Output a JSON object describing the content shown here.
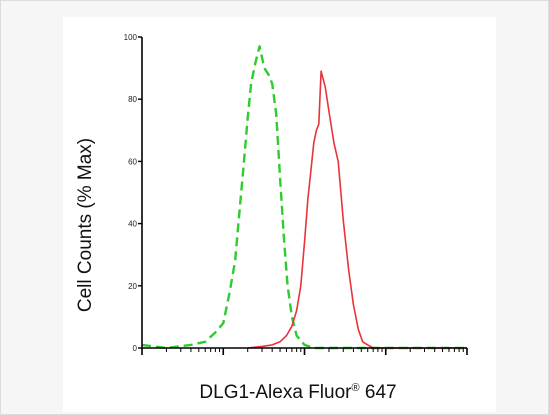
{
  "chart_data": {
    "type": "line",
    "xscale": "log",
    "ylabel": "Cell Counts (% Max)",
    "xlabel": {
      "text": "DLG1-Alexa Fluor",
      "superscript": "®",
      "suffix": " 647"
    },
    "ylim": [
      0,
      100
    ],
    "y_ticks": [
      "0",
      "20",
      "40",
      "60",
      "80",
      "100"
    ],
    "grid": false,
    "legend": "none",
    "series": [
      {
        "style": "dashed",
        "color": "#2ecc2e",
        "x": [
          10,
          20,
          40,
          60,
          80,
          100,
          120,
          140,
          160,
          180,
          200,
          220,
          250,
          280,
          320,
          360,
          400,
          450,
          500,
          560,
          620,
          700,
          800,
          1000,
          1300,
          2000,
          5000,
          100000
        ],
        "y": [
          1,
          0,
          1,
          2,
          5,
          8,
          18,
          28,
          45,
          60,
          74,
          85,
          92,
          97,
          90,
          88,
          85,
          75,
          55,
          35,
          20,
          10,
          4,
          1,
          0,
          0,
          0,
          0
        ]
      },
      {
        "style": "solid",
        "color": "#e8333a",
        "x": [
          200,
          300,
          400,
          500,
          600,
          700,
          800,
          900,
          1000,
          1100,
          1200,
          1300,
          1400,
          1500,
          1600,
          1800,
          2000,
          2300,
          2600,
          3000,
          3500,
          4000,
          4600,
          5200,
          6000,
          7000,
          8000,
          10000,
          100000
        ],
        "y": [
          0,
          0.5,
          1,
          2,
          4,
          7,
          12,
          20,
          34,
          48,
          57,
          66,
          70,
          72,
          89,
          84,
          76,
          66,
          60,
          41,
          25,
          14,
          6,
          2,
          1,
          0,
          0,
          0,
          0
        ]
      }
    ]
  },
  "colors": {
    "axis": "#000000",
    "panel": "#ffffff",
    "page": "#f6f6f6"
  }
}
